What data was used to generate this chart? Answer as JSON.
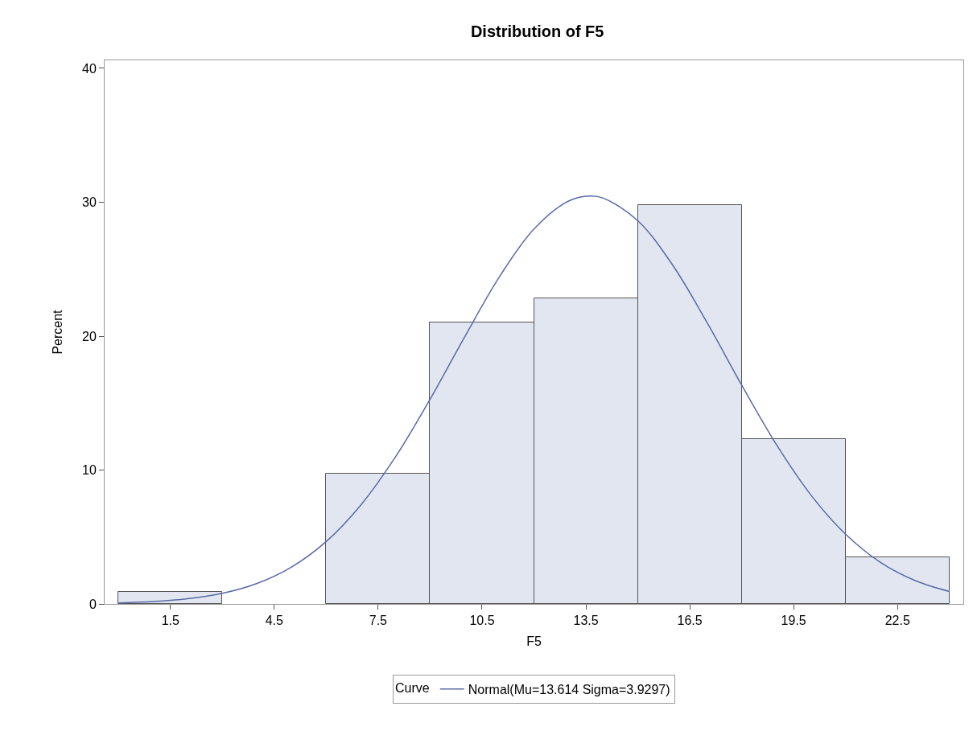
{
  "chart_data": {
    "type": "histogram",
    "title": "Distribution of F5",
    "xlabel": "F5",
    "ylabel": "Percent",
    "legend_title": "Curve",
    "bins": [
      0,
      3,
      6,
      9,
      12,
      15,
      18,
      21,
      24
    ],
    "values": [
      0.9,
      0,
      9.7,
      21.0,
      22.8,
      29.8,
      12.3,
      3.5
    ],
    "color": "#e1e6f0",
    "series": [
      {
        "name": "Normal(Mu=13.614 Sigma=3.9297)",
        "type": "line",
        "color": "#5a6aa8",
        "x": [
          0,
          1,
          2,
          3,
          4,
          5,
          6,
          7,
          8,
          9,
          10,
          11,
          12,
          13,
          13.614,
          14,
          15,
          16,
          17,
          18,
          19,
          20,
          21,
          22,
          23,
          24
        ],
        "values": [
          0.08,
          0.18,
          0.39,
          0.79,
          1.53,
          2.76,
          4.66,
          7.39,
          10.98,
          15.29,
          19.95,
          24.42,
          28.0,
          30.09,
          30.46,
          30.31,
          28.62,
          25.33,
          21.01,
          16.34,
          11.91,
          8.13,
          5.21,
          3.12,
          1.76,
          0.93
        ]
      }
    ],
    "xlim": [
      -0.4,
      24.4
    ],
    "ylim": [
      0,
      40.6
    ],
    "xticks": [
      1.5,
      4.5,
      7.5,
      10.5,
      13.5,
      16.5,
      19.5,
      22.5
    ],
    "yticks": [
      0,
      10,
      20,
      30,
      40
    ],
    "grid": false,
    "legend": "bottom",
    "line_style": "solid",
    "marker": "none"
  }
}
